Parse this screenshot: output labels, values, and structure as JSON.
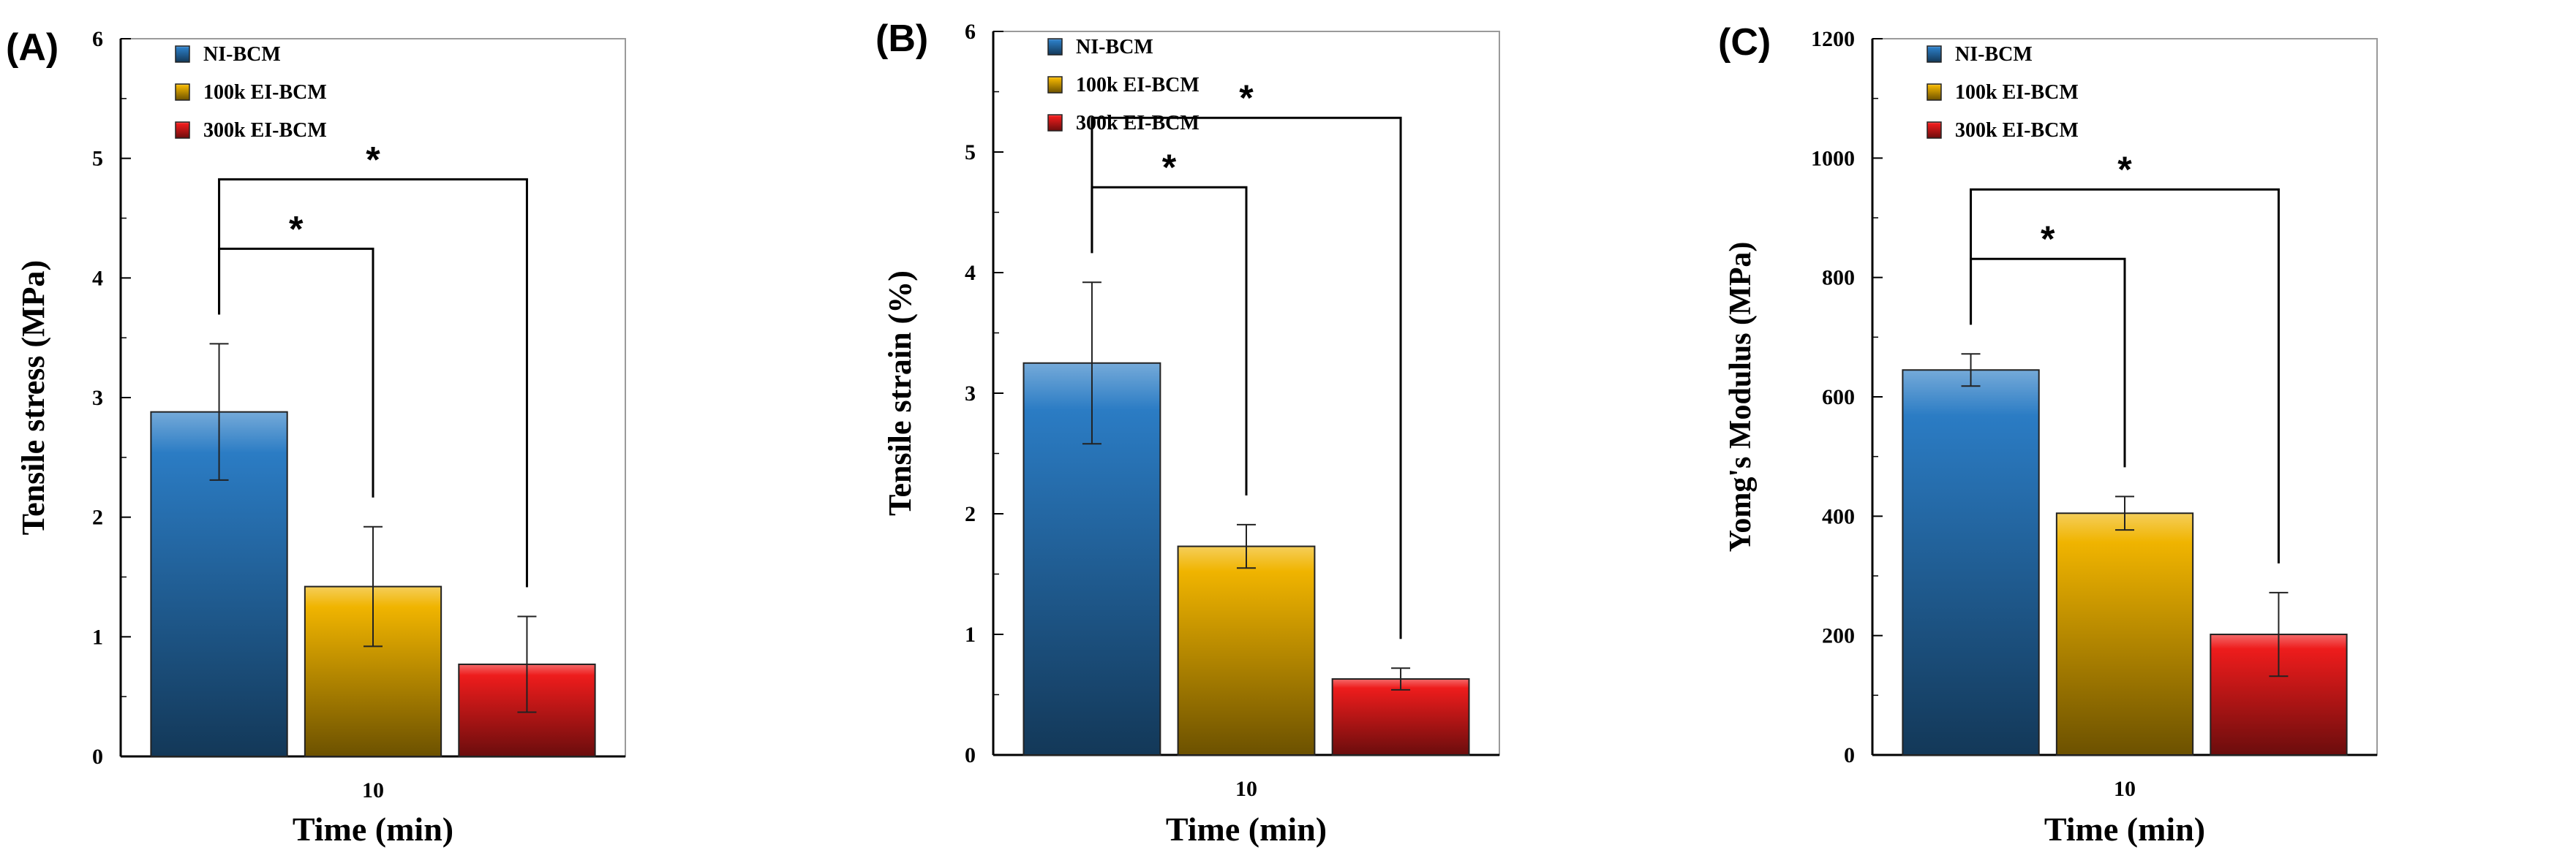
{
  "colors": {
    "NI-BCM": "#2b7cc4",
    "100k EI-BCM": "#f0b400",
    "300k EI-BCM": "#ee1c1c"
  },
  "chart_data": [
    {
      "type": "bar",
      "panel": "(A)",
      "xlabel": "Time (min)",
      "ylabel": "Tensile stress (MPa)",
      "categories": [
        "10"
      ],
      "ylim": [
        0,
        6
      ],
      "yticks": [
        "0",
        "1",
        "2",
        "3",
        "4",
        "5",
        "6"
      ],
      "series": [
        {
          "name": "NI-BCM",
          "values": [
            2.88
          ],
          "error": [
            0.57
          ]
        },
        {
          "name": "100k EI-BCM",
          "values": [
            1.42
          ],
          "error": [
            0.5
          ]
        },
        {
          "name": "300k EI-BCM",
          "values": [
            0.77
          ],
          "error": [
            0.4
          ]
        }
      ],
      "significance": [
        {
          "from": "NI-BCM",
          "to": "100k EI-BCM",
          "label": "*"
        },
        {
          "from": "NI-BCM",
          "to": "300k EI-BCM",
          "label": "*"
        }
      ]
    },
    {
      "type": "bar",
      "panel": "(B)",
      "xlabel": "Time (min)",
      "ylabel": "Tensile strain (%)",
      "categories": [
        "10"
      ],
      "ylim": [
        0,
        6
      ],
      "yticks": [
        "0",
        "1",
        "2",
        "3",
        "4",
        "5",
        "6"
      ],
      "series": [
        {
          "name": "NI-BCM",
          "values": [
            3.25
          ],
          "error": [
            0.67
          ]
        },
        {
          "name": "100k EI-BCM",
          "values": [
            1.73
          ],
          "error": [
            0.18
          ]
        },
        {
          "name": "300k EI-BCM",
          "values": [
            0.63
          ],
          "error": [
            0.09
          ]
        }
      ],
      "significance": [
        {
          "from": "NI-BCM",
          "to": "100k EI-BCM",
          "label": "*"
        },
        {
          "from": "NI-BCM",
          "to": "300k EI-BCM",
          "label": "*"
        }
      ]
    },
    {
      "type": "bar",
      "panel": "(C)",
      "xlabel": "Time (min)",
      "ylabel": "Yomg's Modulus  (MPa)",
      "categories": [
        "10"
      ],
      "ylim": [
        0,
        1200
      ],
      "yticks": [
        "0",
        "200",
        "400",
        "600",
        "800",
        "1000",
        "1200"
      ],
      "series": [
        {
          "name": "NI-BCM",
          "values": [
            645
          ],
          "error": [
            27
          ]
        },
        {
          "name": "100k EI-BCM",
          "values": [
            405
          ],
          "error": [
            28
          ]
        },
        {
          "name": "300k EI-BCM",
          "values": [
            202
          ],
          "error": [
            70
          ]
        }
      ],
      "significance": [
        {
          "from": "NI-BCM",
          "to": "100k EI-BCM",
          "label": "*"
        },
        {
          "from": "NI-BCM",
          "to": "300k EI-BCM",
          "label": "*"
        }
      ]
    }
  ]
}
